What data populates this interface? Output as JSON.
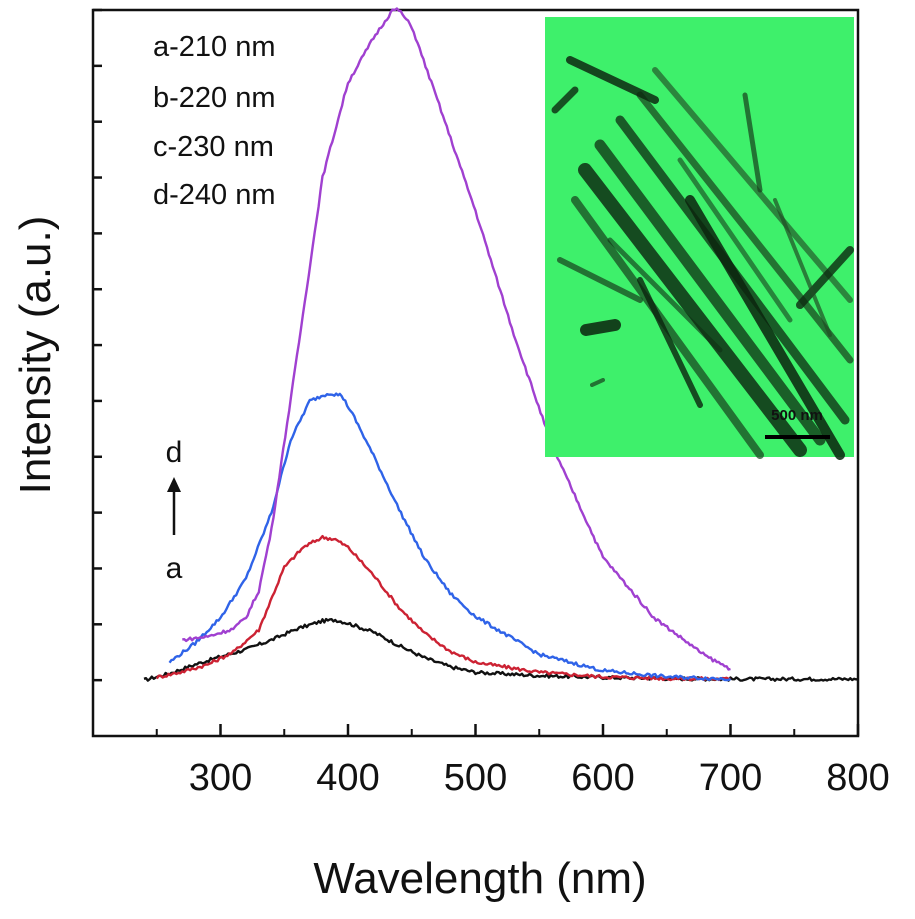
{
  "chart_data": {
    "type": "line",
    "title": "",
    "xlabel": "Wavelength (nm)",
    "ylabel": "Intensity (a.u.)",
    "xlim": [
      200,
      800
    ],
    "ylim": [
      -1,
      12
    ],
    "x_major_ticks": [
      300,
      400,
      500,
      600,
      700,
      800
    ],
    "y_ticks_labeled": false,
    "grid": false,
    "legend": {
      "position": "top-left",
      "entries": [
        "a-210 nm",
        "b-220 nm",
        "c-230 nm",
        "d-240 nm"
      ]
    },
    "annotations": {
      "arrow_top": "d",
      "arrow_bottom": "a"
    },
    "inset": {
      "description_color": "#3cf06a",
      "scale_bar_label": "500 nm"
    },
    "series": [
      {
        "name": "a-210 nm",
        "color": "#111111",
        "x": [
          240,
          260,
          280,
          300,
          320,
          340,
          360,
          380,
          390,
          400,
          420,
          440,
          460,
          480,
          500,
          550,
          600,
          650,
          700,
          750,
          800
        ],
        "y": [
          0.0,
          0.12,
          0.28,
          0.42,
          0.55,
          0.72,
          0.92,
          1.06,
          1.08,
          1.02,
          0.86,
          0.62,
          0.4,
          0.24,
          0.14,
          0.08,
          0.05,
          0.03,
          0.02,
          0.02,
          0.02
        ]
      },
      {
        "name": "b-220 nm",
        "color": "#cc2233",
        "x": [
          250,
          270,
          290,
          310,
          330,
          350,
          365,
          380,
          390,
          400,
          420,
          440,
          460,
          480,
          500,
          550,
          600,
          650,
          700
        ],
        "y": [
          0.05,
          0.15,
          0.28,
          0.5,
          0.9,
          2.02,
          2.38,
          2.56,
          2.52,
          2.38,
          1.88,
          1.3,
          0.84,
          0.52,
          0.32,
          0.14,
          0.06,
          0.03,
          0.02
        ]
      },
      {
        "name": "c-230 nm",
        "color": "#2f63e8",
        "x": [
          260,
          280,
          300,
          320,
          340,
          355,
          370,
          385,
          395,
          405,
          420,
          440,
          460,
          480,
          500,
          550,
          600,
          650,
          700
        ],
        "y": [
          0.32,
          0.66,
          1.12,
          1.82,
          3.0,
          4.3,
          5.0,
          5.14,
          5.1,
          4.7,
          4.02,
          3.06,
          2.18,
          1.56,
          1.14,
          0.46,
          0.17,
          0.06,
          0.02
        ]
      },
      {
        "name": "d-240 nm",
        "color": "#a040d0",
        "x": [
          270,
          290,
          310,
          320,
          330,
          340,
          360,
          380,
          400,
          420,
          435,
          440,
          450,
          470,
          500,
          530,
          560,
          600,
          640,
          680,
          700
        ],
        "y": [
          0.72,
          0.78,
          0.92,
          1.12,
          1.6,
          2.7,
          5.8,
          9.0,
          10.7,
          11.5,
          12.0,
          12.0,
          11.7,
          10.4,
          8.4,
          6.2,
          4.2,
          2.2,
          1.12,
          0.44,
          0.2
        ]
      }
    ]
  }
}
